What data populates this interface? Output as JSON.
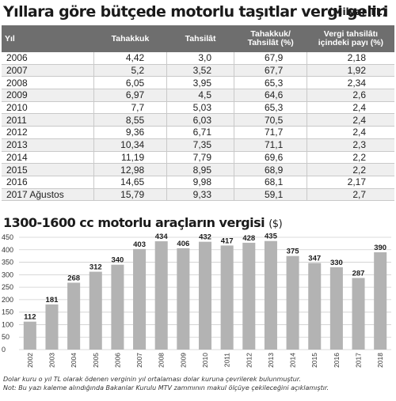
{
  "table": {
    "title": "Yıllara göre bütçede motorlu taşıtlar vergi geliri",
    "unit": "(Milyar TL)",
    "headers": [
      "Yıl",
      "Tahakkuk",
      "Tahsilât",
      "Tahakkuk/\nTahsilât (%)",
      "Vergi tahsilâtı\niçindeki payı (%)"
    ],
    "rows": [
      [
        "2006",
        "4,42",
        "3,0",
        "67,9",
        "2,18"
      ],
      [
        "2007",
        "5,2",
        "3,52",
        "67,7",
        "1,92"
      ],
      [
        "2008",
        "6,05",
        "3,95",
        "65,3",
        "2,34"
      ],
      [
        "2009",
        "6,97",
        "4,5",
        "64,6",
        "2,6"
      ],
      [
        "2010",
        "7,7",
        "5,03",
        "65,3",
        "2,4"
      ],
      [
        "2011",
        "8,55",
        "6,03",
        "70,5",
        "2,4"
      ],
      [
        "2012",
        "9,36",
        "6,71",
        "71,7",
        "2,4"
      ],
      [
        "2013",
        "10,34",
        "7,35",
        "71,1",
        "2,3"
      ],
      [
        "2014",
        "11,19",
        "7,79",
        "69,6",
        "2,2"
      ],
      [
        "2015",
        "12,98",
        "8,95",
        "68,9",
        "2,2"
      ],
      [
        "2016",
        "14,65",
        "9,98",
        "68,1",
        "2,17"
      ],
      [
        "2017 Ağustos",
        "15,79",
        "9,33",
        "59,1",
        "2,7"
      ]
    ]
  },
  "chart_data": {
    "type": "bar",
    "title": "1300-1600 cc motorlu araçların vergisi",
    "unit": "($)",
    "categories": [
      "2002",
      "2003",
      "2004",
      "2005",
      "2006",
      "2007",
      "2008",
      "2009",
      "2010",
      "2011",
      "2012",
      "2013",
      "2014",
      "2015",
      "2016",
      "2017",
      "2018"
    ],
    "values": [
      112,
      181,
      268,
      312,
      340,
      403,
      434,
      406,
      432,
      417,
      428,
      435,
      375,
      347,
      330,
      287,
      390
    ],
    "yticks": [
      0,
      50,
      100,
      150,
      200,
      250,
      300,
      350,
      400,
      450
    ],
    "ylim": [
      0,
      450
    ],
    "grid": true,
    "bar_color": "#b3b3b3"
  },
  "notes": [
    "Dolar kuru o yıl TL olarak ödenen verginin yıl ortalaması dolar kuruna çevrilerek bulunmuştur.",
    "Not: Bu yazı kaleme alındığında Bakanlar Kurulu MTV zammının makul ölçüye çekileceğini açıklamıştır."
  ]
}
